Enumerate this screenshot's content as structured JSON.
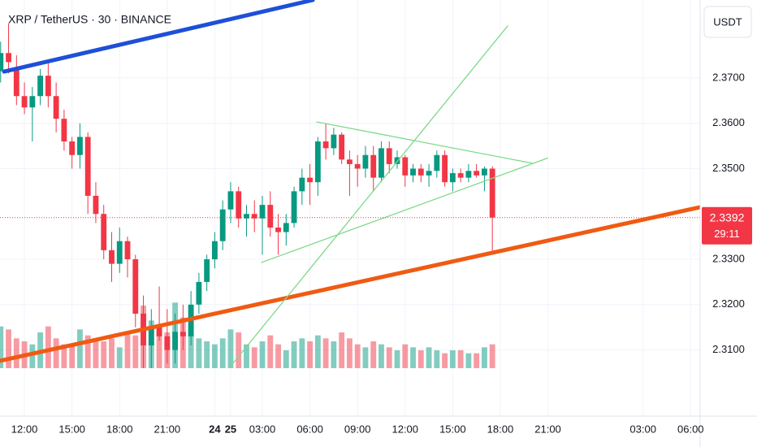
{
  "chart_data": {
    "type": "candlestick",
    "title": "XRP / TetherUS · 30 · BINANCE",
    "currency": "USDT",
    "countdown": "29:11",
    "colors": {
      "up": "#089981",
      "down": "#f23645"
    },
    "grid": true,
    "x": [
      10.5,
      11,
      11.5,
      12,
      12.5,
      13,
      13.5,
      14,
      14.5,
      15,
      15.5,
      16,
      16.5,
      17,
      17.5,
      18,
      18.5,
      19,
      19.5,
      20,
      20.5,
      21,
      21.5,
      22,
      22.5,
      23,
      23.5,
      24,
      24.5,
      25,
      25.5,
      26,
      26.5,
      27,
      27.5,
      28,
      28.5,
      29,
      29.5,
      30,
      30.5,
      31,
      31.5,
      32,
      32.5,
      33,
      33.5,
      34,
      34.5,
      35,
      35.5,
      36,
      36.5,
      37,
      37.5,
      38,
      38.5,
      39,
      39.5,
      40,
      40.5,
      41,
      41.5
    ],
    "open": [
      2.3715,
      2.3755,
      2.372,
      2.366,
      2.3635,
      2.366,
      2.3705,
      2.366,
      2.361,
      2.356,
      2.353,
      2.357,
      2.344,
      2.34,
      2.332,
      2.329,
      2.334,
      2.33,
      2.318,
      2.311,
      2.315,
      2.313,
      2.31,
      2.314,
      2.313,
      2.32,
      2.325,
      2.33,
      2.334,
      2.341,
      2.345,
      2.339,
      2.34,
      2.339,
      2.342,
      2.337,
      2.336,
      2.338,
      2.345,
      2.348,
      2.347,
      2.356,
      2.3545,
      2.3575,
      2.352,
      2.351,
      2.35,
      2.353,
      2.348,
      2.3545,
      2.351,
      2.3525,
      2.3485,
      2.35,
      2.3485,
      2.3495,
      2.353,
      2.347,
      2.349,
      2.348,
      2.3495,
      2.3485,
      2.35
    ],
    "high": [
      2.378,
      2.382,
      2.375,
      2.369,
      2.368,
      2.372,
      2.3735,
      2.369,
      2.363,
      2.357,
      2.36,
      2.358,
      2.347,
      2.342,
      2.336,
      2.337,
      2.335,
      2.331,
      2.322,
      2.319,
      2.324,
      2.319,
      2.318,
      2.32,
      2.323,
      2.327,
      2.331,
      2.336,
      2.343,
      2.347,
      2.346,
      2.342,
      2.343,
      2.344,
      2.345,
      2.34,
      2.34,
      2.346,
      2.35,
      2.351,
      2.357,
      2.36,
      2.359,
      2.358,
      2.354,
      2.353,
      2.355,
      2.355,
      2.356,
      2.356,
      2.354,
      2.353,
      2.351,
      2.351,
      2.351,
      2.354,
      2.354,
      2.35,
      2.35,
      2.351,
      2.351,
      2.3505,
      2.3505
    ],
    "low": [
      2.369,
      2.371,
      2.364,
      2.362,
      2.356,
      2.364,
      2.3635,
      2.358,
      2.354,
      2.35,
      2.35,
      2.34,
      2.338,
      2.33,
      2.325,
      2.327,
      2.326,
      2.315,
      2.306,
      2.306,
      2.312,
      2.307,
      2.307,
      2.31,
      2.311,
      2.318,
      2.323,
      2.328,
      2.332,
      2.338,
      2.337,
      2.335,
      2.336,
      2.331,
      2.335,
      2.331,
      2.333,
      2.337,
      2.342,
      2.342,
      2.344,
      2.352,
      2.353,
      2.351,
      2.344,
      2.346,
      2.348,
      2.345,
      2.347,
      2.349,
      2.35,
      2.346,
      2.347,
      2.347,
      2.346,
      2.348,
      2.346,
      2.345,
      2.347,
      2.347,
      2.348,
      2.345,
      2.3315
    ],
    "close": [
      2.3755,
      2.3735,
      2.366,
      2.3635,
      2.366,
      2.3705,
      2.366,
      2.361,
      2.356,
      2.353,
      2.357,
      2.344,
      2.34,
      2.332,
      2.329,
      2.334,
      2.33,
      2.318,
      2.311,
      2.315,
      2.313,
      2.31,
      2.314,
      2.313,
      2.32,
      2.325,
      2.33,
      2.334,
      2.341,
      2.345,
      2.339,
      2.34,
      2.339,
      2.342,
      2.337,
      2.336,
      2.338,
      2.345,
      2.348,
      2.347,
      2.356,
      2.3545,
      2.3575,
      2.352,
      2.351,
      2.35,
      2.353,
      2.348,
      2.3545,
      2.351,
      2.3525,
      2.3485,
      2.35,
      2.3485,
      2.3495,
      2.353,
      2.347,
      2.349,
      2.348,
      2.3495,
      2.3485,
      2.35,
      2.3392
    ],
    "volume": [
      14,
      13,
      10,
      9,
      8,
      12,
      14,
      10,
      8,
      8,
      13,
      11,
      9,
      9,
      10,
      7,
      12,
      11,
      21,
      16,
      14,
      12,
      22,
      17,
      15,
      10,
      9,
      8,
      10,
      13,
      12,
      8,
      7,
      9,
      11,
      8,
      6,
      9,
      10,
      9,
      11,
      10,
      9,
      12,
      10,
      8,
      7,
      9,
      8,
      7,
      6,
      8,
      7,
      6,
      7,
      6,
      5,
      6,
      6,
      5,
      5,
      7,
      8
    ],
    "volume_lim": [
      0,
      30
    ],
    "xlim": [
      10.46,
      54.6
    ],
    "ylim": [
      2.2954,
      2.3872
    ],
    "xticks": [
      {
        "value": 12,
        "label": "12:00"
      },
      {
        "value": 15,
        "label": "15:00"
      },
      {
        "value": 18,
        "label": "18:00"
      },
      {
        "value": 21,
        "label": "21:00"
      },
      24,
      {
        "value": 27,
        "label": "03:00"
      },
      {
        "value": 30,
        "label": "06:00"
      },
      {
        "value": 33,
        "label": "09:00"
      },
      {
        "value": 36,
        "label": "12:00"
      },
      {
        "value": 39,
        "label": "15:00"
      },
      {
        "value": 42,
        "label": "18:00"
      },
      {
        "value": 45,
        "label": "21:00"
      },
      25,
      {
        "value": 51,
        "label": "03:00"
      },
      {
        "value": 54,
        "label": "06:00"
      }
    ],
    "yticks": [
      {
        "value": 2.31,
        "label": "2.3100"
      },
      {
        "value": 2.32,
        "label": "2.3200"
      },
      {
        "value": 2.33,
        "label": "2.3300"
      },
      {
        "value": 2.35,
        "label": "2.3500"
      },
      {
        "value": 2.36,
        "label": "2.3600"
      },
      {
        "value": 2.37,
        "label": "2.3700"
      }
    ],
    "trend_lines": [
      {
        "color": "#1e4fd8",
        "width": 5,
        "x": [
          10.72,
          30.18
        ],
        "y": [
          2.3714,
          2.3872
        ]
      },
      {
        "color": "#f05a12",
        "width": 5,
        "x": [
          10.46,
          54.6
        ],
        "y": [
          2.3076,
          2.3415
        ]
      },
      {
        "color": "#7fd98a",
        "width": 1.3,
        "x": [
          24.95,
          42.47
        ],
        "y": [
          2.3062,
          2.3815
        ]
      },
      {
        "color": "#7fd98a",
        "width": 1.3,
        "x": [
          30.43,
          44.0
        ],
        "y": [
          2.3603,
          2.3512
        ]
      },
      {
        "color": "#7fd98a",
        "width": 1.3,
        "x": [
          26.95,
          44.97
        ],
        "y": [
          2.3293,
          2.3523
        ]
      }
    ]
  }
}
